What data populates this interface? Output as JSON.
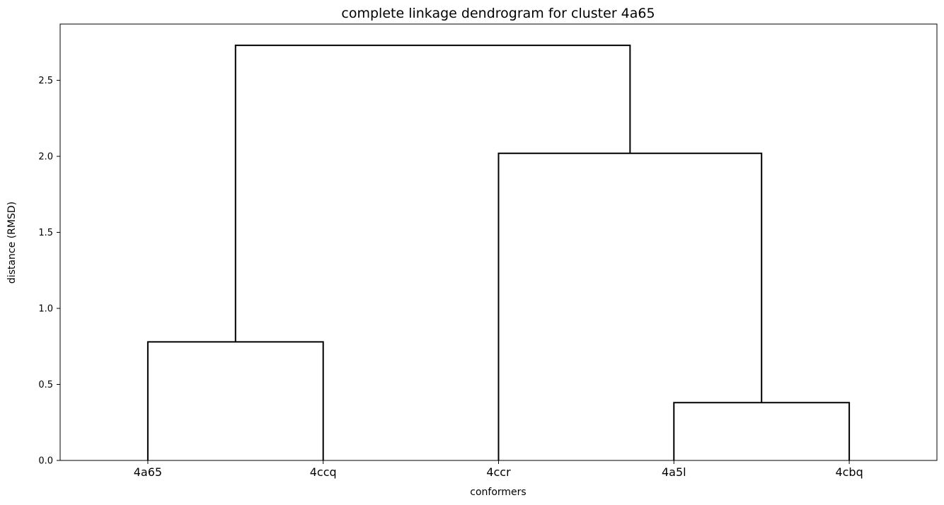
{
  "chart_data": {
    "type": "dendrogram",
    "title": "complete linkage dendrogram for cluster 4a65",
    "xlabel": "conformers",
    "ylabel": "distance (RMSD)",
    "leaves": [
      "4a65",
      "4ccq",
      "4ccr",
      "4a5l",
      "4cbq"
    ],
    "yticks": [
      0.0,
      0.5,
      1.0,
      1.5,
      2.0,
      2.5
    ],
    "ytick_labels": [
      "0.0",
      "0.5",
      "1.0",
      "1.5",
      "2.0",
      "2.5"
    ],
    "ylim": [
      0,
      2.87
    ],
    "merges": [
      {
        "left": "4a65",
        "right": "4ccq",
        "height": 0.78
      },
      {
        "left": "4a5l",
        "right": "4cbq",
        "height": 0.38
      },
      {
        "left": "4ccr",
        "right": "(4a5l, 4cbq)",
        "height": 2.02
      },
      {
        "left": "(4a65, 4ccq)",
        "right": "(4ccr, (4a5l, 4cbq))",
        "height": 2.73
      }
    ],
    "link_color": "#000000",
    "grid": false
  }
}
